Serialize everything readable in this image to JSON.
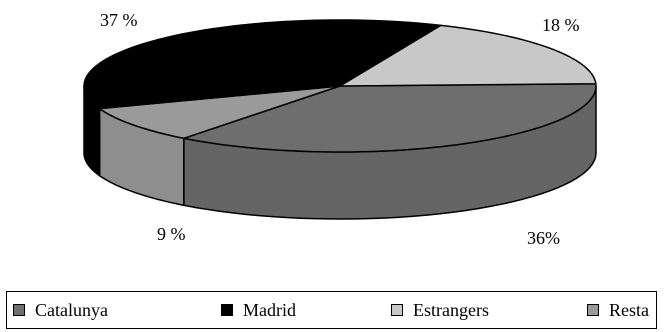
{
  "chart_data": {
    "type": "pie",
    "style": "3d",
    "categories": [
      "Catalunya",
      "Madrid",
      "Estrangers",
      "Resta"
    ],
    "values": [
      36,
      37,
      18,
      9
    ],
    "labels": [
      "36%",
      "37 %",
      "18 %",
      "9 %"
    ],
    "colors": {
      "Catalunya": "#6e6e6e",
      "Madrid": "#000000",
      "Estrangers": "#c8c8c8",
      "Resta": "#9a9a9a"
    },
    "legend": {
      "position": "bottom",
      "items": [
        "Catalunya",
        "Madrid",
        "Estrangers",
        "Resta"
      ]
    }
  }
}
